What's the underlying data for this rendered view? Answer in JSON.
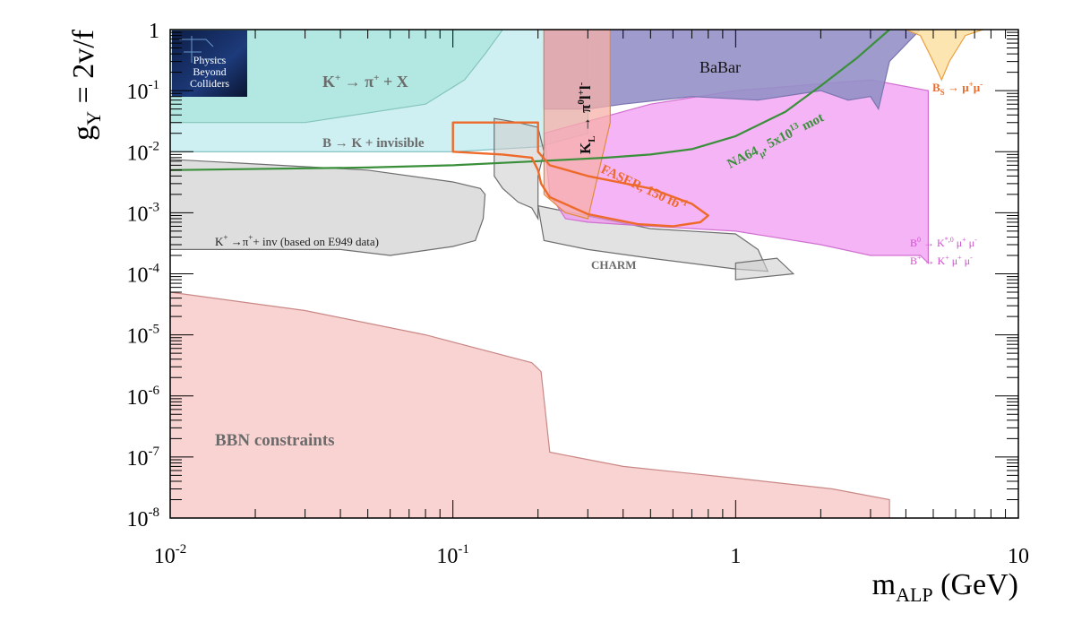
{
  "chart_data": {
    "type": "area",
    "x_scale": "log",
    "y_scale": "log",
    "xlim": [
      0.01,
      10
    ],
    "ylim": [
      1e-08,
      1
    ],
    "x_ticks": [
      {
        "v": 0.01,
        "base": "10",
        "exp": "-2"
      },
      {
        "v": 0.1,
        "base": "10",
        "exp": "-1"
      },
      {
        "v": 1,
        "base": "1",
        "exp": ""
      },
      {
        "v": 10,
        "base": "10",
        "exp": ""
      }
    ],
    "y_ticks": [
      {
        "v": 1,
        "base": "1",
        "exp": ""
      },
      {
        "v": 0.1,
        "base": "10",
        "exp": "-1"
      },
      {
        "v": 0.01,
        "base": "10",
        "exp": "-2"
      },
      {
        "v": 0.001,
        "base": "10",
        "exp": "-3"
      },
      {
        "v": 0.0001,
        "base": "10",
        "exp": "-4"
      },
      {
        "v": 1e-05,
        "base": "10",
        "exp": "-5"
      },
      {
        "v": 1e-06,
        "base": "10",
        "exp": "-6"
      },
      {
        "v": 1e-07,
        "base": "10",
        "exp": "-7"
      },
      {
        "v": 1e-08,
        "base": "10",
        "exp": "-8"
      }
    ],
    "xlabel": {
      "main": "m",
      "sub": "ALP",
      "rest": " (GeV)"
    },
    "ylabel": {
      "main": "g",
      "sub": "Y",
      "rest": " = 2v/f"
    },
    "grid": false,
    "logo": {
      "lines": [
        "Physics",
        "Beyond",
        "Colliders"
      ]
    },
    "regions": [
      {
        "name": "BBN",
        "fill": "#f4b6b4",
        "stroke": "#c98886",
        "opacity": 0.6,
        "points": [
          [
            0.01,
            5e-05
          ],
          [
            0.03,
            2.5e-05
          ],
          [
            0.08,
            1e-05
          ],
          [
            0.19,
            3.5e-06
          ],
          [
            0.205,
            2.5e-06
          ],
          [
            0.22,
            1.2e-07
          ],
          [
            0.4,
            7e-08
          ],
          [
            1,
            4.5e-08
          ],
          [
            2.2,
            3e-08
          ],
          [
            3.5,
            2e-08
          ],
          [
            3.5,
            1e-08
          ],
          [
            0.01,
            1e-08
          ]
        ]
      },
      {
        "name": "K-pi-X",
        "fill": "#7fdcb5",
        "stroke": "#5a9f86",
        "opacity": 0.5,
        "points": [
          [
            0.01,
            1
          ],
          [
            0.15,
            1
          ],
          [
            0.13,
            0.4
          ],
          [
            0.11,
            0.15
          ],
          [
            0.08,
            0.06
          ],
          [
            0.03,
            0.03
          ],
          [
            0.01,
            0.03
          ]
        ]
      },
      {
        "name": "B-K-invisible",
        "fill": "#a8e4e8",
        "stroke": "#7bbcc0",
        "opacity": 0.55,
        "points": [
          [
            0.01,
            1
          ],
          [
            0.2,
            1
          ],
          [
            0.3,
            1
          ],
          [
            0.3,
            0.02
          ],
          [
            0.2,
            0.012
          ],
          [
            0.1,
            0.01
          ],
          [
            0.01,
            0.01
          ]
        ]
      },
      {
        "name": "E949",
        "fill": "#c8c8c8",
        "stroke": "#6e6e6e",
        "opacity": 0.6,
        "points": [
          [
            0.01,
            0.0075
          ],
          [
            0.05,
            0.005
          ],
          [
            0.1,
            0.0032
          ],
          [
            0.125,
            0.0025
          ],
          [
            0.13,
            0.002
          ],
          [
            0.128,
            0.0008
          ],
          [
            0.12,
            0.00035
          ],
          [
            0.1,
            0.00028
          ],
          [
            0.06,
            0.0002
          ],
          [
            0.04,
            0.00025
          ],
          [
            0.01,
            0.00025
          ]
        ]
      },
      {
        "name": "CHARM-1",
        "fill": "#cfcfcf",
        "stroke": "#6e6e6e",
        "opacity": 0.6,
        "points": [
          [
            0.14,
            0.035
          ],
          [
            0.17,
            0.03
          ],
          [
            0.2,
            0.025
          ],
          [
            0.21,
            0.01
          ],
          [
            0.2,
            0.004
          ],
          [
            0.2,
            0.0008
          ],
          [
            0.19,
            0.0012
          ],
          [
            0.17,
            0.0015
          ],
          [
            0.15,
            0.0025
          ],
          [
            0.14,
            0.004
          ]
        ]
      },
      {
        "name": "CHARM-2",
        "fill": "#cfcfcf",
        "stroke": "#6e6e6e",
        "opacity": 0.6,
        "points": [
          [
            0.2,
            0.0013
          ],
          [
            0.5,
            0.00055
          ],
          [
            1.0,
            0.00045
          ],
          [
            1.2,
            0.00025
          ],
          [
            1.3,
            0.00011
          ],
          [
            1.0,
            0.00012
          ],
          [
            0.5,
            0.00018
          ],
          [
            0.3,
            0.00025
          ],
          [
            0.21,
            0.00035
          ]
        ]
      },
      {
        "name": "CHARM-3",
        "fill": "#cfcfcf",
        "stroke": "#6e6e6e",
        "opacity": 0.6,
        "points": [
          [
            1.0,
            0.00015
          ],
          [
            1.4,
            0.00018
          ],
          [
            1.6,
            0.0001
          ],
          [
            1.0,
            8e-05
          ]
        ]
      },
      {
        "name": "B-K-mumu",
        "fill": "#ee8cf0",
        "stroke": "#d070d0",
        "opacity": 0.65,
        "points": [
          [
            0.21,
            0.02
          ],
          [
            0.5,
            0.06
          ],
          [
            1,
            0.1
          ],
          [
            3,
            0.15
          ],
          [
            4.8,
            0.1
          ],
          [
            4.8,
            0.00015
          ],
          [
            4.5,
            0.0002
          ],
          [
            3,
            0.0002
          ],
          [
            2,
            0.0003
          ],
          [
            1,
            0.0005
          ],
          [
            0.5,
            0.0006
          ],
          [
            0.3,
            0.0007
          ],
          [
            0.25,
            0.0008
          ],
          [
            0.22,
            0.002
          ]
        ]
      },
      {
        "name": "BaBar",
        "fill": "#9590c8",
        "stroke": "#7a75b0",
        "opacity": 0.9,
        "points": [
          [
            0.21,
            1
          ],
          [
            4.5,
            1
          ],
          [
            3.5,
            0.3
          ],
          [
            3.2,
            0.05
          ],
          [
            3.0,
            0.08
          ],
          [
            2.5,
            0.07
          ],
          [
            2.0,
            0.1
          ],
          [
            1.2,
            0.07
          ],
          [
            0.7,
            0.08
          ],
          [
            0.4,
            0.06
          ],
          [
            0.3,
            0.05
          ],
          [
            0.25,
            0.05
          ],
          [
            0.21,
            0.05
          ]
        ]
      },
      {
        "name": "KL",
        "fill": "#f7b0a8",
        "stroke": "#e08a3a",
        "opacity": 0.75,
        "points": [
          [
            0.21,
            1
          ],
          [
            0.36,
            1
          ],
          [
            0.36,
            0.03
          ],
          [
            0.3,
            0.0008
          ],
          [
            0.25,
            0.001
          ],
          [
            0.21,
            0.002
          ]
        ]
      },
      {
        "name": "Bs-mumu",
        "fill": "#fde0a4",
        "stroke": "#e8a040",
        "opacity": 0.85,
        "points": [
          [
            4.0,
            1
          ],
          [
            7.5,
            1
          ],
          [
            6.5,
            0.8
          ],
          [
            5.7,
            0.3
          ],
          [
            5.35,
            0.15
          ],
          [
            5.0,
            0.3
          ],
          [
            4.5,
            0.8
          ]
        ]
      }
    ],
    "lines": [
      {
        "name": "NA64",
        "color": "#3a8f3a",
        "width": 2.2,
        "points": [
          [
            0.01,
            0.005
          ],
          [
            0.05,
            0.0055
          ],
          [
            0.1,
            0.006
          ],
          [
            0.2,
            0.007
          ],
          [
            0.35,
            0.008
          ],
          [
            0.5,
            0.009
          ],
          [
            0.7,
            0.011
          ],
          [
            1.0,
            0.018
          ],
          [
            1.5,
            0.045
          ],
          [
            2.0,
            0.12
          ],
          [
            2.7,
            0.35
          ],
          [
            3.5,
            1.0
          ]
        ]
      },
      {
        "name": "FASER",
        "color": "#ee6a2a",
        "width": 2.4,
        "closed": true,
        "points": [
          [
            0.1,
            0.03
          ],
          [
            0.1,
            0.01
          ],
          [
            0.15,
            0.009
          ],
          [
            0.19,
            0.008
          ],
          [
            0.2,
            0.005
          ],
          [
            0.205,
            0.003
          ],
          [
            0.22,
            0.0018
          ],
          [
            0.3,
            0.00095
          ],
          [
            0.45,
            0.00065
          ],
          [
            0.6,
            0.0006
          ],
          [
            0.75,
            0.0007
          ],
          [
            0.8,
            0.0009
          ],
          [
            0.7,
            0.0014
          ],
          [
            0.5,
            0.0025
          ],
          [
            0.3,
            0.004
          ],
          [
            0.22,
            0.006
          ],
          [
            0.2,
            0.01
          ],
          [
            0.2,
            0.03
          ]
        ]
      }
    ],
    "labels": {
      "kpix": {
        "pre": "K",
        "sup1": "+",
        "mid": " → π",
        "sup2": "+",
        "post": " + X"
      },
      "bkinv": "B → K + invisible",
      "e949": {
        "pre": "K",
        "sup1": "+",
        "mid": " →π",
        "sup2": "+",
        "post": "+ inv (based on E949 data)"
      },
      "charm": "CHARM",
      "bbn": "BBN constraints",
      "babar": "BaBar",
      "faser": "FASER, 150 fb",
      "faser_exp": "-1",
      "na64": {
        "pre": "NA64",
        "sub": "μ",
        "mid": ", 5x10",
        "sup": "13",
        "post": "  mot"
      },
      "kl": {
        "pre": "K",
        "sub": "L",
        "mid": " → π",
        "sup1": "0",
        "tail": "l",
        "sup2": "+",
        "tail2": "l",
        "sup3": "-"
      },
      "bs": {
        "pre": "B",
        "sub": "S",
        "mid": " → μ",
        "sup1": "+",
        "tail": "μ",
        "sup2": "-"
      },
      "bkmumu1": {
        "pre": "B",
        "sup0": "0",
        "mid": " → K",
        "sup1": "*,0",
        "tail": " μ",
        "sup2": "+",
        "tail2": " μ",
        "sup3": "-"
      },
      "bkmumu2": {
        "pre": "B",
        "sup0": "+",
        "mid": " → K",
        "sup1": "+",
        "tail": " μ",
        "sup2": "+",
        "tail2": " μ",
        "sup3": "-"
      }
    }
  }
}
